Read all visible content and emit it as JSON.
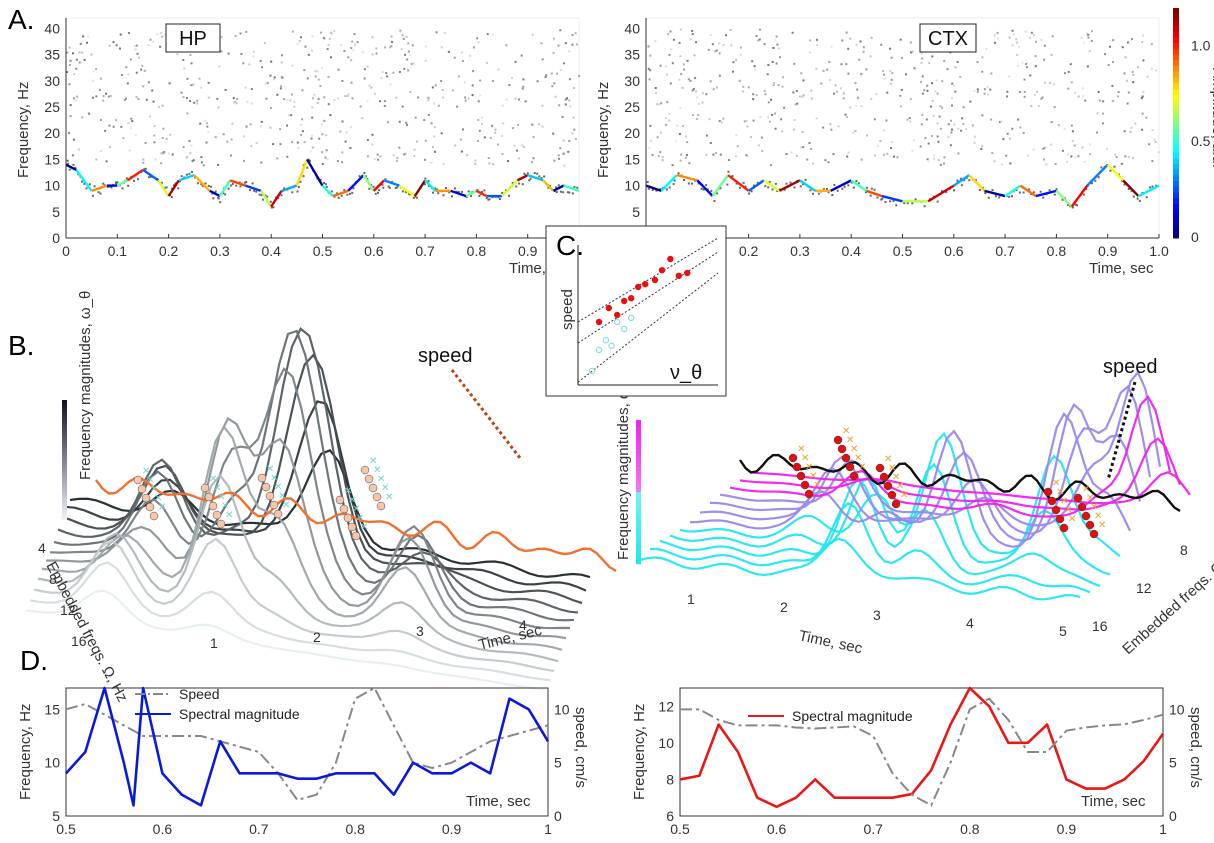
{
  "panels": {
    "a": "A.",
    "b": "B.",
    "c": "C.",
    "d": "D."
  },
  "chart_data": [
    {
      "id": "A-HP",
      "type": "scatter",
      "label": "HP",
      "xlabel": "Time, sec",
      "ylabel": "Frequency, Hz",
      "xlim": [
        0,
        1
      ],
      "ylim": [
        0,
        42
      ],
      "xticks": [
        "0",
        "0.1",
        "0.2",
        "0.3",
        "0.4",
        "0.5",
        "0.6",
        "0.7",
        "0.8",
        "0.9"
      ],
      "yticks": [
        "0",
        "5",
        "10",
        "15",
        "20",
        "25",
        "30",
        "35",
        "40"
      ],
      "x": [
        0,
        0.02,
        0.05,
        0.08,
        0.1,
        0.12,
        0.15,
        0.18,
        0.2,
        0.22,
        0.25,
        0.28,
        0.3,
        0.32,
        0.35,
        0.38,
        0.4,
        0.42,
        0.45,
        0.47,
        0.5,
        0.52,
        0.55,
        0.58,
        0.6,
        0.62,
        0.65,
        0.68,
        0.7,
        0.72,
        0.75,
        0.78,
        0.8,
        0.82,
        0.85,
        0.88,
        0.9,
        0.93,
        0.95,
        0.97,
        1.0
      ],
      "y": [
        14,
        13,
        9,
        10,
        10,
        11,
        13,
        11,
        8,
        11,
        12,
        9,
        8,
        11,
        10,
        9,
        6,
        9,
        10,
        15,
        10,
        8,
        9,
        12,
        9,
        11,
        10,
        8,
        11,
        9,
        9,
        8,
        9,
        8,
        8,
        11,
        12,
        11,
        9,
        10,
        9
      ]
    },
    {
      "id": "A-CTX",
      "type": "scatter",
      "label": "CTX",
      "xlabel": "Time, sec",
      "ylabel": "Frequency, Hz",
      "xlim": [
        0,
        1
      ],
      "ylim": [
        0,
        42
      ],
      "colorbar": {
        "label": "Amplitude, a.u.",
        "ticks": [
          "0",
          "0.5",
          "1.0"
        ]
      },
      "xticks": [
        "0",
        "0.1",
        "0.2",
        "0.3",
        "0.4",
        "0.5",
        "0.6",
        "0.7",
        "0.8",
        "0.9",
        "1.0"
      ],
      "yticks": [
        "5",
        "10",
        "15",
        "20",
        "25",
        "30",
        "35",
        "40"
      ],
      "x": [
        0,
        0.03,
        0.06,
        0.1,
        0.13,
        0.16,
        0.2,
        0.23,
        0.26,
        0.3,
        0.33,
        0.36,
        0.4,
        0.43,
        0.46,
        0.5,
        0.55,
        0.6,
        0.63,
        0.66,
        0.7,
        0.73,
        0.76,
        0.8,
        0.83,
        0.86,
        0.9,
        0.93,
        0.96,
        1.0
      ],
      "y": [
        10,
        9,
        12,
        11,
        8,
        12,
        9,
        11,
        9,
        11,
        9,
        9,
        11,
        9,
        8,
        7,
        7,
        10,
        12,
        9,
        8,
        10,
        8,
        9,
        6,
        10,
        14,
        11,
        8,
        10
      ]
    },
    {
      "id": "B-HP",
      "type": "surface",
      "zlabel": "Frequency magnitudes, ω_θ",
      "xlabel": "Time, sec",
      "ylabel": "Embedded freqs. Ω, Hz",
      "xticks": [
        "1",
        "2",
        "3",
        "4"
      ],
      "yticks": [
        "4",
        "8",
        "12",
        "16"
      ],
      "annotation": "speed"
    },
    {
      "id": "B-CTX",
      "type": "surface",
      "zlabel": "Frequency magnitudes, ω_θ",
      "xlabel": "Time, sec",
      "ylabel": "Embedded freqs. Ω, Hz",
      "xticks": [
        "1",
        "2",
        "3",
        "4",
        "5"
      ],
      "yticks": [
        "8",
        "12",
        "16"
      ],
      "annotation": "speed"
    },
    {
      "id": "C",
      "type": "scatter",
      "ylabel": "speed",
      "xlabel": "ν_θ",
      "series": [
        {
          "color": "#e81010",
          "x": [
            0.15,
            0.22,
            0.28,
            0.33,
            0.38,
            0.43,
            0.48,
            0.55,
            0.6,
            0.66,
            0.72,
            0.78
          ],
          "y": [
            0.45,
            0.55,
            0.5,
            0.6,
            0.62,
            0.7,
            0.72,
            0.75,
            0.82,
            0.9,
            0.78,
            0.8
          ]
        },
        {
          "color": "#8adede",
          "x": [
            0.1,
            0.15,
            0.2,
            0.24,
            0.28,
            0.33,
            0.38
          ],
          "y": [
            0.1,
            0.25,
            0.32,
            0.28,
            0.45,
            0.4,
            0.48
          ]
        }
      ]
    },
    {
      "id": "D-HP",
      "type": "line",
      "xlabel": "Time, sec",
      "ylabel": "Frequency, Hz",
      "y2label": "speed, cm/s",
      "xlim": [
        0.5,
        1
      ],
      "ylim": [
        5,
        17
      ],
      "y2lim": [
        0,
        12
      ],
      "xticks": [
        "0.5",
        "0.6",
        "0.7",
        "0.8",
        "0.9",
        "1"
      ],
      "yticks": [
        "5",
        "10",
        "15"
      ],
      "y2ticks": [
        "0",
        "5",
        "10"
      ],
      "x": [
        0.5,
        0.52,
        0.54,
        0.56,
        0.57,
        0.58,
        0.6,
        0.62,
        0.64,
        0.66,
        0.68,
        0.7,
        0.72,
        0.74,
        0.76,
        0.78,
        0.8,
        0.82,
        0.84,
        0.86,
        0.88,
        0.9,
        0.92,
        0.94,
        0.96,
        0.98,
        1.0
      ],
      "series": [
        {
          "name": "Spectral magnitude",
          "color": "#0a1ad8",
          "axis": "left",
          "values": [
            9,
            11,
            17,
            10,
            6,
            17,
            9,
            7,
            6,
            12,
            9,
            9,
            9,
            8.5,
            8.5,
            9,
            9,
            9,
            7,
            10,
            9,
            9,
            10,
            9,
            16,
            15,
            12
          ]
        },
        {
          "name": "Speed",
          "color": "#888888",
          "axis": "right",
          "dashed": true,
          "values": [
            10,
            10.5,
            9.5,
            8.5,
            8,
            7.5,
            7.5,
            7.5,
            7.5,
            7,
            6.5,
            6,
            4,
            1.5,
            2,
            5,
            11,
            12,
            8.5,
            5,
            4.5,
            5,
            6,
            7,
            7.5,
            8,
            8.5
          ]
        }
      ]
    },
    {
      "id": "D-CTX",
      "type": "line",
      "xlabel": "Time, sec",
      "ylabel": "Frequency, Hz",
      "y2label": "speed, cm/s",
      "xlim": [
        0.5,
        1
      ],
      "ylim": [
        6,
        13
      ],
      "y2lim": [
        0,
        12
      ],
      "xticks": [
        "0.5",
        "0.6",
        "0.7",
        "0.8",
        "0.9",
        "1"
      ],
      "yticks": [
        "6",
        "8",
        "10",
        "12"
      ],
      "y2ticks": [
        "0",
        "5",
        "10"
      ],
      "x": [
        0.5,
        0.52,
        0.54,
        0.56,
        0.58,
        0.6,
        0.62,
        0.64,
        0.66,
        0.68,
        0.7,
        0.72,
        0.74,
        0.76,
        0.78,
        0.8,
        0.82,
        0.84,
        0.86,
        0.88,
        0.9,
        0.92,
        0.94,
        0.96,
        0.98,
        1.0
      ],
      "series": [
        {
          "name": "Spectral magnitude",
          "color": "#e81818",
          "axis": "left",
          "values": [
            8,
            8.2,
            11,
            9.5,
            7,
            6.5,
            7,
            8,
            7,
            7,
            7,
            7,
            7.2,
            8.5,
            11,
            13,
            12,
            10,
            10,
            11,
            8,
            7.5,
            7.5,
            8,
            9,
            10.5
          ]
        },
        {
          "name": "Speed",
          "color": "#888888",
          "axis": "right",
          "dashed": true,
          "values": [
            10,
            10,
            9,
            8.5,
            8.5,
            8.5,
            8.3,
            8.2,
            8.3,
            8.4,
            7.5,
            4,
            2,
            1,
            5,
            10,
            11,
            9,
            6,
            6,
            8,
            8.3,
            8.5,
            8.6,
            9,
            9.5
          ]
        }
      ]
    }
  ]
}
